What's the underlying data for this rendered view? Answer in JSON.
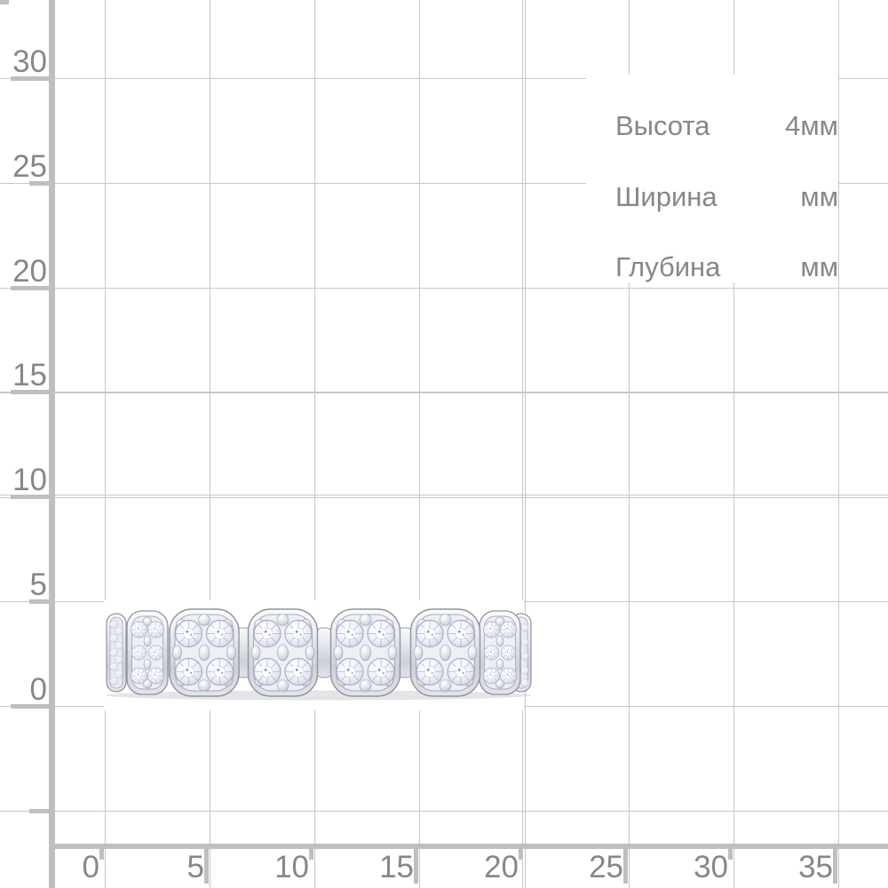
{
  "info_panel": {
    "rows": [
      {
        "label": "Высота",
        "value": "4мм"
      },
      {
        "label": "Ширина",
        "value": "мм"
      },
      {
        "label": "Глубина",
        "value": "мм"
      }
    ]
  },
  "ruler_grid": {
    "unit": "мм",
    "y_axis_labels": [
      "30",
      "25",
      "20",
      "15",
      "10",
      "5",
      "0"
    ],
    "x_axis_labels": [
      "0",
      "5",
      "10",
      "15",
      "20",
      "25",
      "30",
      "35"
    ],
    "colors": {
      "grid_line": "#c7c7c7",
      "axis_line": "#bfbfbf",
      "label_text": "#878787",
      "background": "#ffffff"
    }
  },
  "product_photo": {
    "alt": "diamond eternity ring"
  }
}
